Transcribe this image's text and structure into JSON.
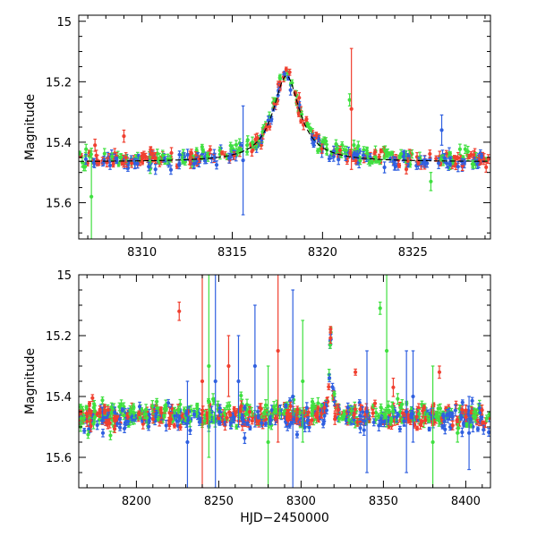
{
  "chart_data": [
    {
      "type": "scatter",
      "panel": "top",
      "xlabel": "",
      "ylabel": "Magnitude",
      "xlim": [
        8306.5,
        8329.3
      ],
      "ylim": [
        15.72,
        14.98
      ],
      "y_inverted": true,
      "xticks": [
        8310,
        8315,
        8320,
        8325
      ],
      "yticks": [
        15,
        15.2,
        15.4,
        15.6
      ],
      "xtick_labels": [
        "8310",
        "8315",
        "8320",
        "8325"
      ],
      "ytick_labels": [
        "15",
        "15.2",
        "15.4",
        "15.6"
      ],
      "series": [
        {
          "color": "#3060e0",
          "baseline": 15.465,
          "noise": 0.012
        },
        {
          "color": "#40e040",
          "baseline": 15.455,
          "noise": 0.014
        },
        {
          "color": "#f04030",
          "baseline": 15.46,
          "noise": 0.013
        }
      ],
      "event": {
        "t0": 8318.0,
        "peak_mag": 15.18,
        "baseline": 15.465,
        "tE": 1.6
      },
      "model_curve": true,
      "outliers": [
        {
          "x": 8307.2,
          "y": 15.58,
          "err": 0.16,
          "series": 1
        },
        {
          "x": 8307.4,
          "y": 15.41,
          "err": 0.02,
          "series": 2
        },
        {
          "x": 8309.0,
          "y": 15.38,
          "err": 0.02,
          "series": 2
        },
        {
          "x": 8315.6,
          "y": 15.46,
          "err": 0.18,
          "series": 0
        },
        {
          "x": 8321.5,
          "y": 15.26,
          "err": 0.02,
          "series": 1
        },
        {
          "x": 8321.6,
          "y": 15.29,
          "err": 0.2,
          "series": 2
        },
        {
          "x": 8326.6,
          "y": 15.36,
          "err": 0.05,
          "series": 0
        },
        {
          "x": 8326.0,
          "y": 15.53,
          "err": 0.03,
          "series": 1
        }
      ]
    },
    {
      "type": "scatter",
      "panel": "bottom",
      "xlabel": "HJD−2450000",
      "ylabel": "Magnitude",
      "xlim": [
        8165,
        8415
      ],
      "ylim": [
        15.7,
        15.0
      ],
      "y_inverted": true,
      "xticks": [
        8200,
        8250,
        8300,
        8350,
        8400
      ],
      "yticks": [
        15,
        15.2,
        15.4,
        15.6
      ],
      "xtick_labels": [
        "8200",
        "8250",
        "8300",
        "8350",
        "8400"
      ],
      "ytick_labels": [
        "15",
        "15.2",
        "15.4",
        "15.6"
      ],
      "series": [
        {
          "color": "#3060e0",
          "baseline": 15.47,
          "noise": 0.02
        },
        {
          "color": "#40e040",
          "baseline": 15.46,
          "noise": 0.02
        },
        {
          "color": "#f04030",
          "baseline": 15.465,
          "noise": 0.018
        }
      ],
      "event": {
        "t0": 8318.0,
        "peak_mag": 15.18,
        "baseline": 15.465,
        "tE": 1.6
      },
      "model_curve": false,
      "outliers": [
        {
          "x": 8226,
          "y": 15.12,
          "err": 0.03,
          "series": 2
        },
        {
          "x": 8231,
          "y": 15.55,
          "err": 0.2,
          "series": 0
        },
        {
          "x": 8240,
          "y": 15.35,
          "err": 0.35,
          "series": 2
        },
        {
          "x": 8244,
          "y": 15.3,
          "err": 0.3,
          "series": 1
        },
        {
          "x": 8248,
          "y": 15.35,
          "err": 0.35,
          "series": 0
        },
        {
          "x": 8256,
          "y": 15.3,
          "err": 0.1,
          "series": 2
        },
        {
          "x": 8262,
          "y": 15.35,
          "err": 0.15,
          "series": 0
        },
        {
          "x": 8272,
          "y": 15.3,
          "err": 0.2,
          "series": 0
        },
        {
          "x": 8280,
          "y": 15.55,
          "err": 0.25,
          "series": 1
        },
        {
          "x": 8286,
          "y": 15.25,
          "err": 0.3,
          "series": 2
        },
        {
          "x": 8295,
          "y": 15.4,
          "err": 0.35,
          "series": 0
        },
        {
          "x": 8301,
          "y": 15.35,
          "err": 0.2,
          "series": 1
        },
        {
          "x": 8333,
          "y": 15.32,
          "err": 0.01,
          "series": 2
        },
        {
          "x": 8340,
          "y": 15.45,
          "err": 0.2,
          "series": 0
        },
        {
          "x": 8348,
          "y": 15.11,
          "err": 0.02,
          "series": 1
        },
        {
          "x": 8352,
          "y": 15.25,
          "err": 0.25,
          "series": 1
        },
        {
          "x": 8356,
          "y": 15.37,
          "err": 0.03,
          "series": 2
        },
        {
          "x": 8364,
          "y": 15.45,
          "err": 0.2,
          "series": 0
        },
        {
          "x": 8368,
          "y": 15.4,
          "err": 0.15,
          "series": 0
        },
        {
          "x": 8380,
          "y": 15.55,
          "err": 0.25,
          "series": 1
        },
        {
          "x": 8384,
          "y": 15.32,
          "err": 0.02,
          "series": 2
        },
        {
          "x": 8395,
          "y": 15.52,
          "err": 0.03,
          "series": 1
        },
        {
          "x": 8402,
          "y": 15.52,
          "err": 0.12,
          "series": 0
        }
      ]
    }
  ]
}
